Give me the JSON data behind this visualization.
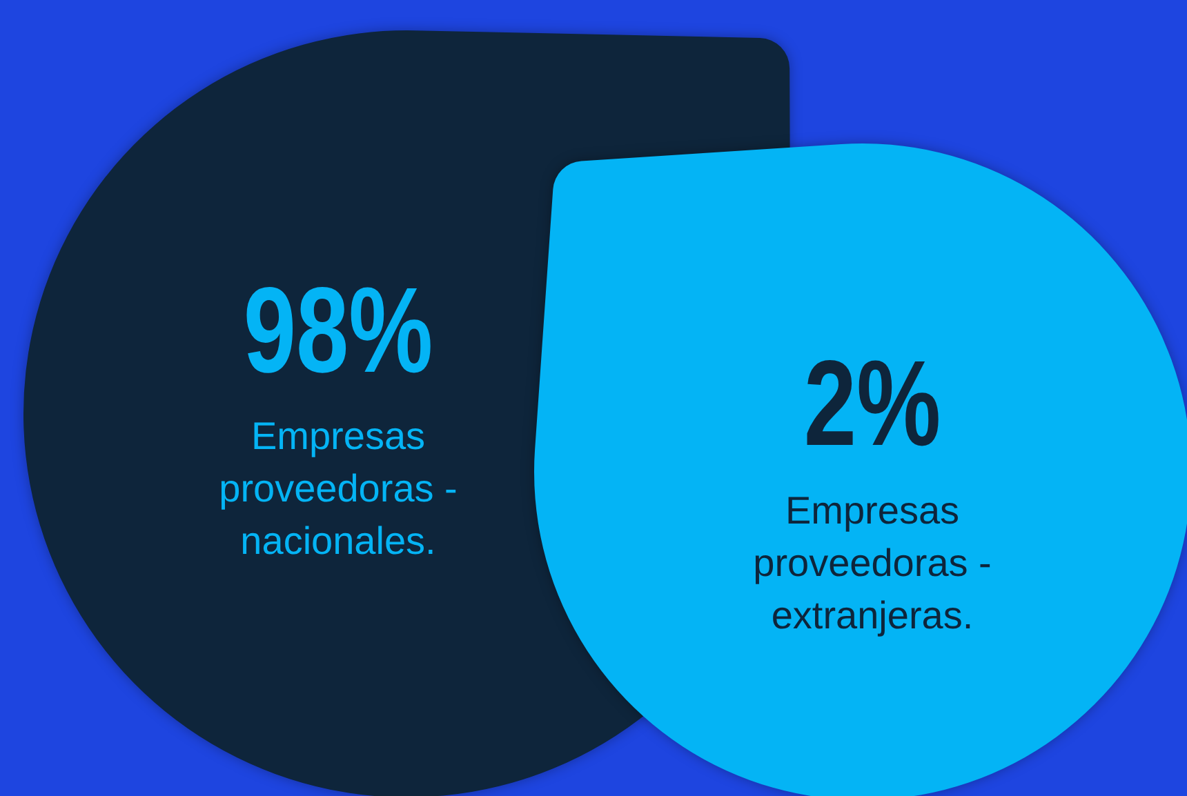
{
  "chart_data": {
    "type": "other",
    "categories": [
      "Empresas proveedoras - nacionales.",
      "Empresas proveedoras - extranjeras."
    ],
    "values": [
      98,
      2
    ],
    "value_labels": [
      "98%",
      "2%"
    ],
    "colors": [
      "#0e253b",
      "#04b4f5"
    ]
  }
}
